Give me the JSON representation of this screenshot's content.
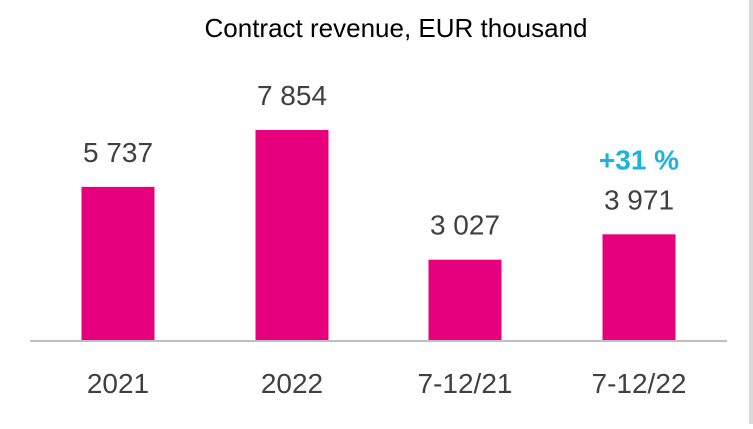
{
  "chart_data": {
    "type": "bar",
    "title": "Contract revenue, EUR thousand",
    "categories": [
      "2021",
      "2022",
      "7-12/21",
      "7-12/22"
    ],
    "values": [
      5737,
      7854,
      3027,
      3971
    ],
    "value_labels": [
      "5 737",
      "7 854",
      "3 027",
      "3 971"
    ],
    "annotation": {
      "text": "+31 %",
      "category": "7-12/22",
      "color": "#1ab3e0"
    },
    "ylim": [
      0,
      8500
    ],
    "xlabel": "",
    "ylabel": "",
    "grid": false,
    "bar_color": "#e6007e",
    "text_color": "#404040",
    "axis_color": "#bfbfbf"
  }
}
